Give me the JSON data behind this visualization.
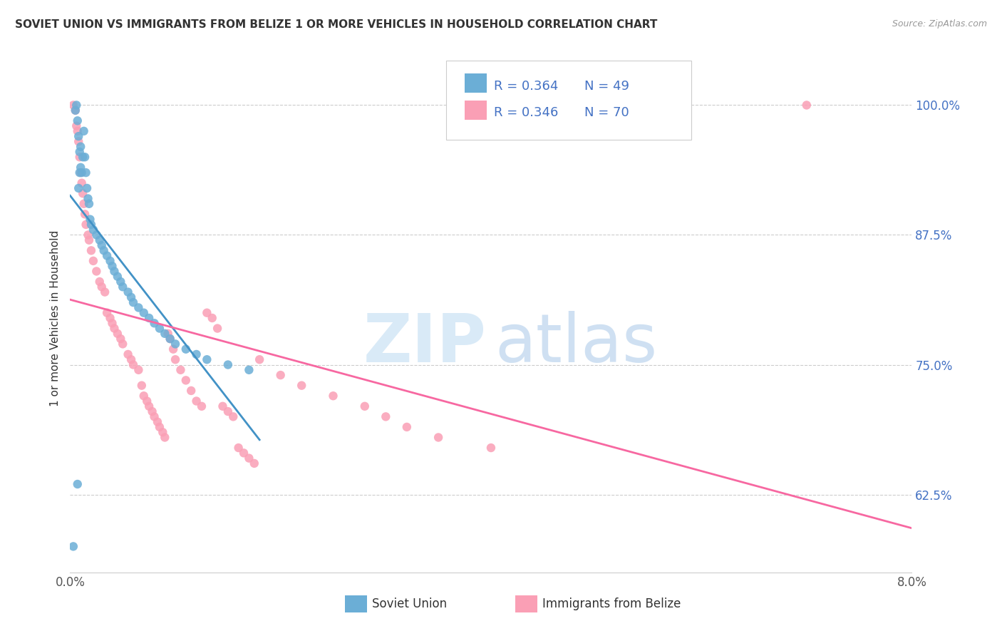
{
  "title": "SOVIET UNION VS IMMIGRANTS FROM BELIZE 1 OR MORE VEHICLES IN HOUSEHOLD CORRELATION CHART",
  "source": "Source: ZipAtlas.com",
  "ylabel": "1 or more Vehicles in Household",
  "yticks": [
    62.5,
    75.0,
    87.5,
    100.0
  ],
  "xlim": [
    0.0,
    8.0
  ],
  "ylim": [
    55.0,
    104.0
  ],
  "color_blue": "#6baed6",
  "color_pink": "#fa9fb5",
  "trendline_blue": "#4292c6",
  "trendline_pink": "#f768a1",
  "soviet_x": [
    0.05,
    0.06,
    0.07,
    0.08,
    0.09,
    0.1,
    0.1,
    0.11,
    0.12,
    0.13,
    0.14,
    0.15,
    0.16,
    0.17,
    0.18,
    0.19,
    0.2,
    0.22,
    0.25,
    0.28,
    0.3,
    0.32,
    0.35,
    0.38,
    0.4,
    0.42,
    0.45,
    0.48,
    0.5,
    0.55,
    0.58,
    0.6,
    0.65,
    0.7,
    0.75,
    0.8,
    0.85,
    0.9,
    0.95,
    1.0,
    1.1,
    1.2,
    1.3,
    1.5,
    1.7,
    0.07,
    0.03,
    0.08,
    0.09
  ],
  "soviet_y": [
    99.5,
    100.0,
    98.5,
    97.0,
    95.5,
    96.0,
    94.0,
    93.5,
    95.0,
    97.5,
    95.0,
    93.5,
    92.0,
    91.0,
    90.5,
    89.0,
    88.5,
    88.0,
    87.5,
    87.0,
    86.5,
    86.0,
    85.5,
    85.0,
    84.5,
    84.0,
    83.5,
    83.0,
    82.5,
    82.0,
    81.5,
    81.0,
    80.5,
    80.0,
    79.5,
    79.0,
    78.5,
    78.0,
    77.5,
    77.0,
    76.5,
    76.0,
    75.5,
    75.0,
    74.5,
    63.5,
    57.5,
    92.0,
    93.5
  ],
  "belize_x": [
    0.03,
    0.05,
    0.06,
    0.07,
    0.08,
    0.09,
    0.1,
    0.11,
    0.12,
    0.13,
    0.14,
    0.15,
    0.17,
    0.18,
    0.2,
    0.22,
    0.25,
    0.28,
    0.3,
    0.33,
    0.35,
    0.38,
    0.4,
    0.42,
    0.45,
    0.48,
    0.5,
    0.55,
    0.58,
    0.6,
    0.65,
    0.68,
    0.7,
    0.73,
    0.75,
    0.78,
    0.8,
    0.83,
    0.85,
    0.88,
    0.9,
    0.93,
    0.95,
    0.98,
    1.0,
    1.05,
    1.1,
    1.15,
    1.2,
    1.25,
    1.3,
    1.35,
    1.4,
    1.45,
    1.5,
    1.55,
    1.6,
    1.65,
    1.7,
    1.75,
    1.8,
    2.0,
    2.2,
    2.5,
    2.8,
    3.0,
    3.2,
    3.5,
    4.0,
    7.0
  ],
  "belize_y": [
    100.0,
    99.5,
    98.0,
    97.5,
    96.5,
    95.0,
    93.5,
    92.5,
    91.5,
    90.5,
    89.5,
    88.5,
    87.5,
    87.0,
    86.0,
    85.0,
    84.0,
    83.0,
    82.5,
    82.0,
    80.0,
    79.5,
    79.0,
    78.5,
    78.0,
    77.5,
    77.0,
    76.0,
    75.5,
    75.0,
    74.5,
    73.0,
    72.0,
    71.5,
    71.0,
    70.5,
    70.0,
    69.5,
    69.0,
    68.5,
    68.0,
    78.0,
    77.5,
    76.5,
    75.5,
    74.5,
    73.5,
    72.5,
    71.5,
    71.0,
    80.0,
    79.5,
    78.5,
    71.0,
    70.5,
    70.0,
    67.0,
    66.5,
    66.0,
    65.5,
    75.5,
    74.0,
    73.0,
    72.0,
    71.0,
    70.0,
    69.0,
    68.0,
    67.0,
    100.0
  ]
}
